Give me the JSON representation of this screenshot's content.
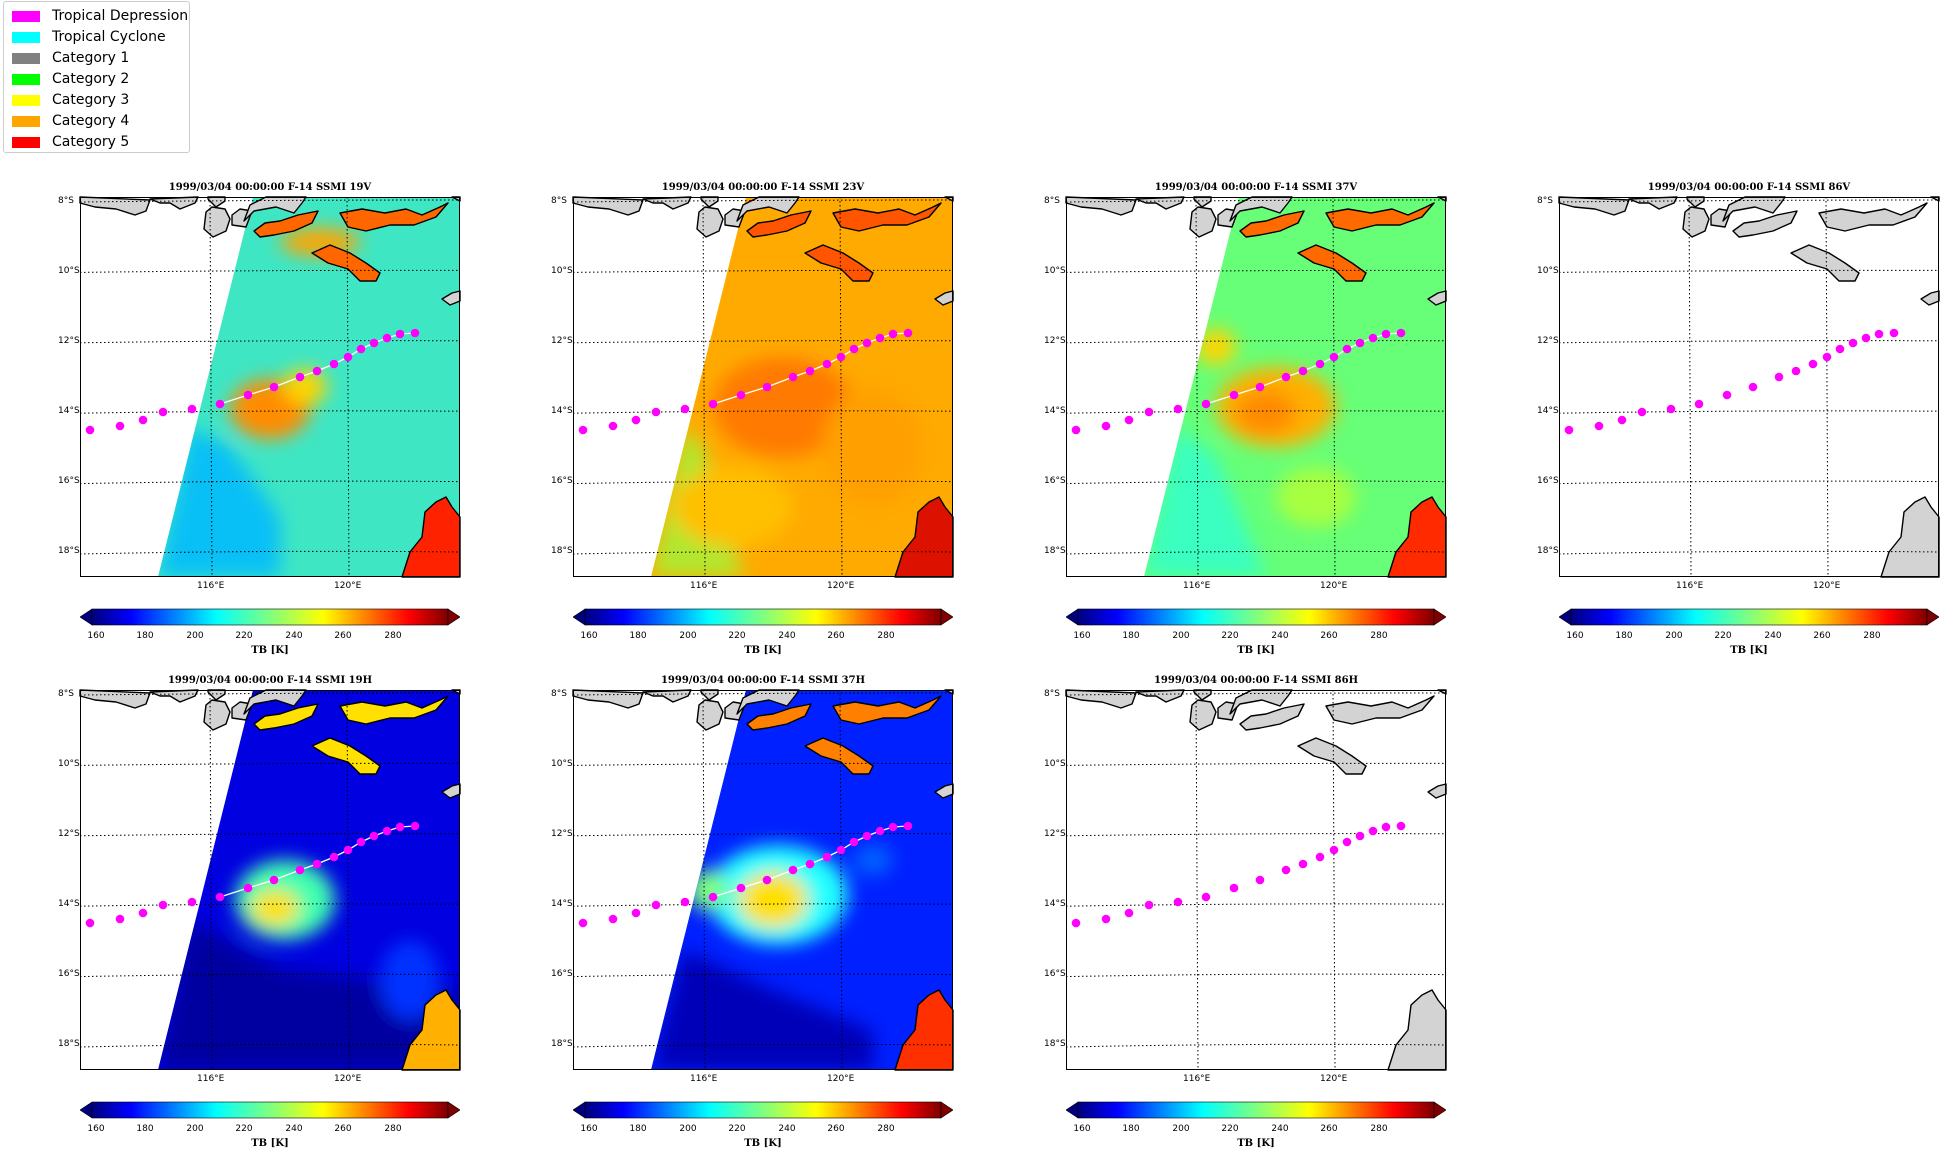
{
  "legend": {
    "items": [
      {
        "label": "Tropical Depression",
        "color": "#ff00ff"
      },
      {
        "label": "Tropical Cyclone",
        "color": "#00ffff"
      },
      {
        "label": "Category 1",
        "color": "#808080"
      },
      {
        "label": "Category 2",
        "color": "#00ff00"
      },
      {
        "label": "Category 3",
        "color": "#ffff00"
      },
      {
        "label": "Category 4",
        "color": "#ffa500"
      },
      {
        "label": "Category 5",
        "color": "#ff0000"
      }
    ]
  },
  "map": {
    "lat_ticks": [
      "8°S",
      "10°S",
      "12°S",
      "14°S",
      "16°S",
      "18°S"
    ],
    "lon_ticks": [
      "116°E",
      "120°E"
    ],
    "track_color": "#ff00ff",
    "land_color": "#d3d3d3"
  },
  "colorbar": {
    "label": "TB [K]",
    "ticks": [
      "160",
      "180",
      "200",
      "220",
      "240",
      "260",
      "280"
    ]
  },
  "panels": [
    {
      "title": "1999/03/04 00:00:00  F-14 SSMI 19V",
      "scene": "v19"
    },
    {
      "title": "1999/03/04 00:00:00  F-14 SSMI 23V",
      "scene": "v23"
    },
    {
      "title": "1999/03/04 00:00:00  F-14 SSMI 37V",
      "scene": "v37"
    },
    {
      "title": "1999/03/04 00:00:00  F-14 SSMI 86V",
      "scene": "empty"
    },
    {
      "title": "1999/03/04 00:00:00  F-14 SSMI 19H",
      "scene": "h19"
    },
    {
      "title": "1999/03/04 00:00:00  F-14 SSMI 37H",
      "scene": "h37"
    },
    {
      "title": "1999/03/04 00:00:00  F-14 SSMI 86H",
      "scene": "empty"
    }
  ]
}
